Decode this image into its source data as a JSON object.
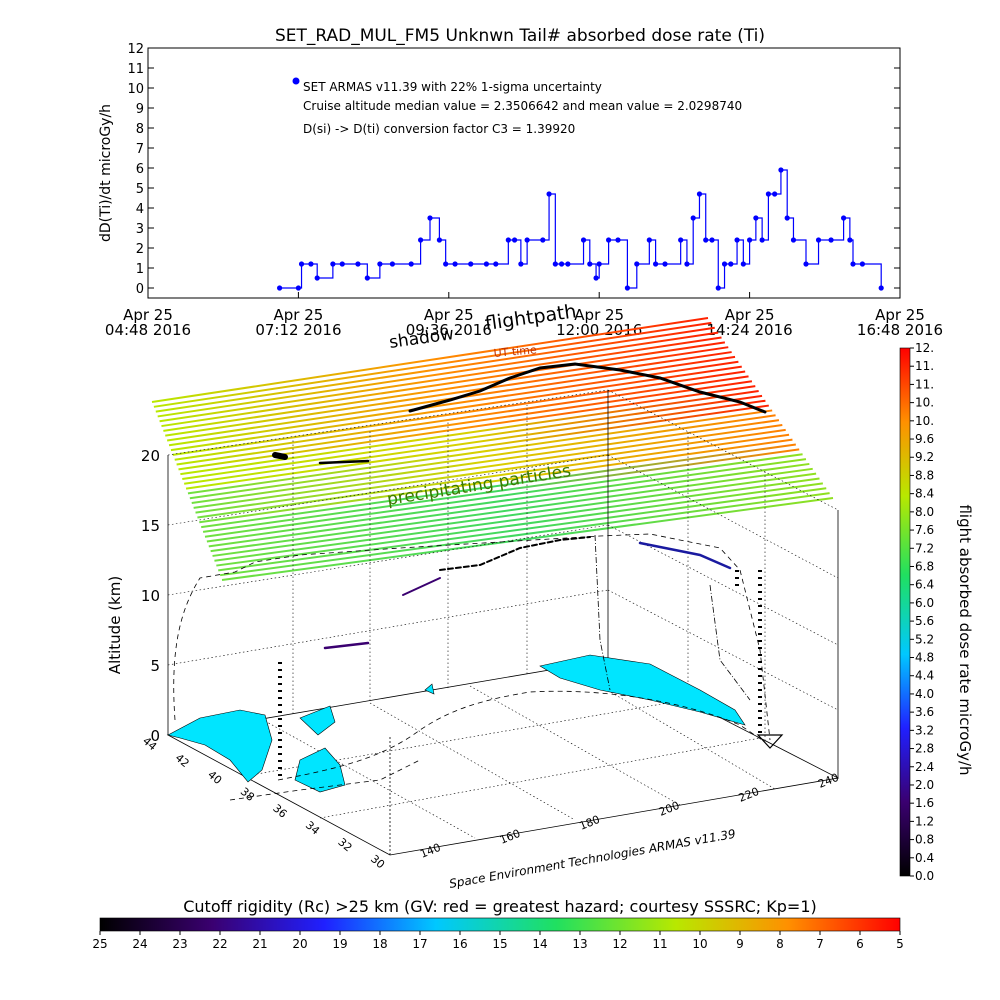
{
  "chart_data": [
    {
      "type": "line",
      "title": "SET_RAD_MUL_FM5 Unknwn Tail#  absorbed dose rate (Ti)",
      "ylabel": "dD(Ti)/dt microGy/h",
      "ylim": [
        -0.5,
        12
      ],
      "yticks": [
        0,
        1,
        2,
        3,
        4,
        5,
        6,
        7,
        8,
        9,
        10,
        11,
        12
      ],
      "xlim": [
        "Apr 25 04:48 2016",
        "Apr 25 16:48 2016"
      ],
      "xticks": [
        {
          "label_top": "Apr 25",
          "label_bottom": "04:48 2016",
          "t": 4.8
        },
        {
          "label_top": "Apr 25",
          "label_bottom": "07:12 2016",
          "t": 7.2
        },
        {
          "label_top": "Apr 25",
          "label_bottom": "09:36 2016",
          "t": 9.6
        },
        {
          "label_top": "Apr 25",
          "label_bottom": "12:00 2016",
          "t": 12.0
        },
        {
          "label_top": "Apr 25",
          "label_bottom": "14:24 2016",
          "t": 14.4
        },
        {
          "label_top": "Apr 25",
          "label_bottom": "16:48 2016",
          "t": 16.8
        }
      ],
      "legend": {
        "entry": "SET ARMAS v11.39 with 22% 1-sigma uncertainty",
        "lines": [
          "Cruise altitude median value = 2.3506642 and mean value = 2.0298740",
          "D(si) -> D(ti) conversion factor C3 = 1.39920"
        ]
      },
      "series": [
        {
          "color": "#0000ff",
          "x_hours": [
            6.9,
            7.2,
            7.25,
            7.4,
            7.5,
            7.75,
            7.9,
            8.15,
            8.3,
            8.5,
            8.7,
            9.0,
            9.15,
            9.3,
            9.45,
            9.55,
            9.7,
            9.95,
            10.2,
            10.35,
            10.55,
            10.65,
            10.75,
            10.85,
            11.1,
            11.2,
            11.3,
            11.4,
            11.5,
            11.75,
            11.85,
            11.95,
            12.0,
            12.15,
            12.3,
            12.45,
            12.6,
            12.8,
            12.9,
            13.05,
            13.3,
            13.4,
            13.5,
            13.6,
            13.7,
            13.8,
            13.9,
            14.0,
            14.1,
            14.2,
            14.3,
            14.4,
            14.5,
            14.6,
            14.7,
            14.8,
            14.9,
            15.0,
            15.1,
            15.3,
            15.5,
            15.7,
            15.9,
            16.0,
            16.05,
            16.2,
            16.5
          ],
          "values": [
            0,
            0,
            1.2,
            1.2,
            0.5,
            1.2,
            1.2,
            1.2,
            0.5,
            1.2,
            1.2,
            1.2,
            2.4,
            3.5,
            2.4,
            1.2,
            1.2,
            1.2,
            1.2,
            1.2,
            2.4,
            2.4,
            1.2,
            2.4,
            2.4,
            4.7,
            1.2,
            1.2,
            1.2,
            2.4,
            1.2,
            0.5,
            1.2,
            2.4,
            2.4,
            0,
            1.2,
            2.4,
            1.2,
            1.2,
            2.4,
            1.2,
            3.5,
            4.7,
            2.4,
            2.4,
            0,
            1.2,
            1.2,
            2.4,
            1.2,
            2.4,
            3.5,
            2.4,
            4.7,
            4.7,
            5.9,
            3.5,
            2.4,
            1.2,
            2.4,
            2.4,
            3.5,
            2.4,
            1.2,
            1.2,
            0
          ]
        }
      ]
    },
    {
      "type": "scatter",
      "title": "flightpath",
      "annotations": [
        "shadow",
        "UT time",
        "precipitating particles",
        "Space Environment Technologies ARMAS v11.39"
      ],
      "zlabel": "Altitude (km)",
      "zticks": [
        "0",
        "5",
        "10",
        "15",
        "20"
      ],
      "lat_ticks": [
        "44",
        "42",
        "40",
        "38",
        "36",
        "34",
        "32",
        "30"
      ],
      "lon_ticks": [
        "140",
        "160",
        "180",
        "200",
        "220",
        "240"
      ],
      "colorbar": {
        "title": "flight absorbed dose rate microGy/h",
        "range": [
          0.0,
          12.0
        ],
        "tick_labels": [
          "0.0",
          "0.4",
          "0.8",
          "1.2",
          "1.6",
          "2.0",
          "2.4",
          "2.8",
          "3.2",
          "3.6",
          "4.0",
          "4.4",
          "4.8",
          "5.2",
          "5.6",
          "6.0",
          "6.4",
          "6.8",
          "7.2",
          "7.6",
          "8.0",
          "8.4",
          "8.8",
          "9.2",
          "9.6",
          "10.",
          "10.",
          "11.",
          "11.",
          "12."
        ]
      }
    },
    {
      "type": "heatmap",
      "title": "Cutoff rigidity (Rc) >25 km (GV: red = greatest hazard; courtesy SSSRC; Kp=1)",
      "colorbar_labels": [
        "25",
        "24",
        "23",
        "22",
        "21",
        "20",
        "19",
        "18",
        "17",
        "16",
        "15",
        "14",
        "13",
        "12",
        "11",
        "10",
        "9",
        "8",
        "7",
        "6",
        "5"
      ]
    }
  ],
  "colors": {
    "series": "#0000ff",
    "land": "#00e5ff",
    "ramp": [
      "#000000",
      "#3a0070",
      "#2020ff",
      "#00c8ff",
      "#20e060",
      "#b8e800",
      "#ff9000",
      "#ff0000"
    ]
  }
}
